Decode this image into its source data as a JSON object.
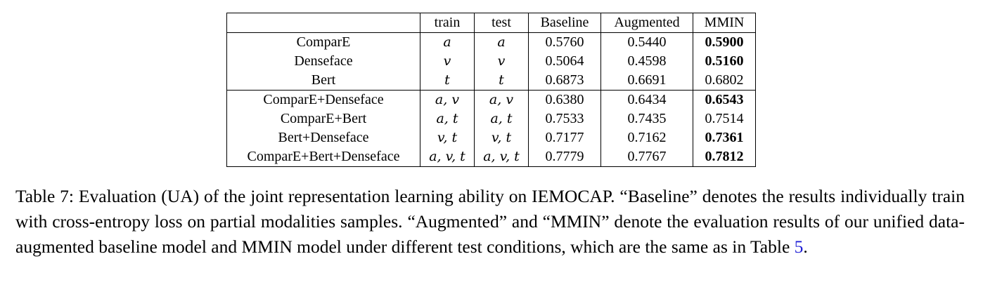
{
  "table": {
    "headers": [
      "",
      "train",
      "test",
      "Baseline",
      "Augmented",
      "MMIN"
    ],
    "groups": [
      {
        "rows": [
          {
            "feature": "ComparE",
            "train": "a",
            "test": "a",
            "baseline": "0.5760",
            "augmented": "0.5440",
            "mmin": "0.5900",
            "mmin_best": true
          },
          {
            "feature": "Denseface",
            "train": "v",
            "test": "v",
            "baseline": "0.5064",
            "augmented": "0.4598",
            "mmin": "0.5160",
            "mmin_best": true
          },
          {
            "feature": "Bert",
            "train": "t",
            "test": "t",
            "baseline": "0.6873",
            "augmented": "0.6691",
            "mmin": "0.6802",
            "mmin_best": false
          }
        ]
      },
      {
        "rows": [
          {
            "feature": "ComparE+Denseface",
            "train": "a, v",
            "test": "a, v",
            "baseline": "0.6380",
            "augmented": "0.6434",
            "mmin": "0.6543",
            "mmin_best": true
          },
          {
            "feature": "ComparE+Bert",
            "train": "a, t",
            "test": "a, t",
            "baseline": "0.7533",
            "augmented": "0.7435",
            "mmin": "0.7514",
            "mmin_best": false
          },
          {
            "feature": "Bert+Denseface",
            "train": "v, t",
            "test": "v, t",
            "baseline": "0.7177",
            "augmented": "0.7162",
            "mmin": "0.7361",
            "mmin_best": true
          },
          {
            "feature": "ComparE+Bert+Denseface",
            "train": "a, v, t",
            "test": "a, v, t",
            "baseline": "0.7779",
            "augmented": "0.7767",
            "mmin": "0.7812",
            "mmin_best": true
          }
        ]
      }
    ]
  },
  "caption": {
    "text": "Table 7: Evaluation (UA) of the joint representation learning ability on IEMOCAP. “Baseline” denotes the results individually train with cross-entropy loss on partial modalities samples.  “Augmented” and “MMIN” denote the evaluation results of our unified data-augmented baseline model and MMIN model under different test conditions, which are the same as in Table ",
    "ref": "5",
    "tail": "."
  }
}
